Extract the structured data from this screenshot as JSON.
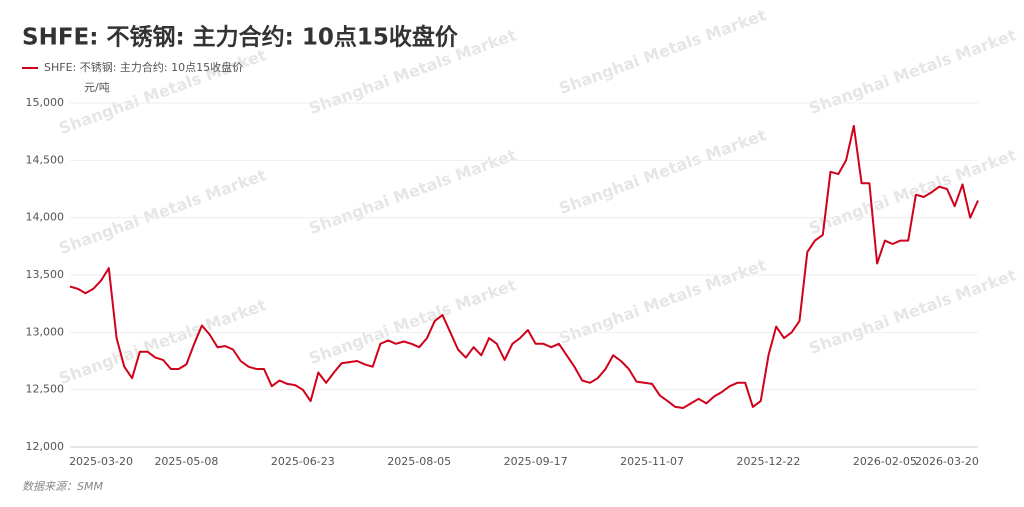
{
  "chart_data": {
    "type": "line",
    "title": "SHFE: 不锈钢: 主力合约: 10点15收盘价",
    "y_axis_label": "元/吨",
    "source": "数据来源：SMM",
    "watermark": "Shanghai Metals Market",
    "categories": [
      null,
      null,
      null,
      null,
      "2025-03-20",
      null,
      null,
      null,
      null,
      null,
      null,
      null,
      null,
      null,
      null,
      "2025-05-08",
      null,
      null,
      null,
      null,
      null,
      null,
      null,
      null,
      null,
      null,
      null,
      null,
      null,
      null,
      "2025-06-23",
      null,
      null,
      null,
      null,
      null,
      null,
      null,
      null,
      null,
      null,
      null,
      null,
      null,
      null,
      "2025-08-05",
      null,
      null,
      null,
      null,
      null,
      null,
      null,
      null,
      null,
      null,
      null,
      null,
      null,
      null,
      "2025-09-17",
      null,
      null,
      null,
      null,
      null,
      null,
      null,
      null,
      null,
      null,
      null,
      null,
      null,
      null,
      "2025-11-07",
      null,
      null,
      null,
      null,
      null,
      null,
      null,
      null,
      null,
      null,
      null,
      null,
      null,
      null,
      "2025-12-22",
      null,
      null,
      null,
      null,
      null,
      null,
      null,
      null,
      null,
      null,
      null,
      null,
      null,
      null,
      "2026-02-05",
      null,
      null,
      null,
      null,
      null,
      null,
      null,
      "2026-03-20",
      null,
      null,
      null,
      null
    ],
    "series": [
      {
        "name": "SHFE: 不锈钢: 主力合约: 10点15收盘价",
        "color": "#d0021b",
        "values": [
          13400,
          13380,
          13340,
          13380,
          13450,
          13560,
          12950,
          12700,
          12600,
          12830,
          12830,
          12780,
          12760,
          12680,
          12680,
          12720,
          12900,
          13060,
          12980,
          12870,
          12880,
          12850,
          12750,
          12700,
          12680,
          12680,
          12530,
          12580,
          12550,
          12540,
          12500,
          12400,
          12650,
          12560,
          12650,
          12730,
          12740,
          12750,
          12720,
          12700,
          12900,
          12930,
          12900,
          12920,
          12900,
          12870,
          12950,
          13100,
          13150,
          13000,
          12850,
          12780,
          12870,
          12800,
          12950,
          12900,
          12760,
          12900,
          12950,
          13020,
          12900,
          12900,
          12870,
          12900,
          12800,
          12700,
          12580,
          12560,
          12600,
          12680,
          12800,
          12750,
          12680,
          12570,
          12560,
          12550,
          12450,
          12400,
          12350,
          12340,
          12380,
          12420,
          12380,
          12440,
          12480,
          12530,
          12560,
          12560,
          12350,
          12400,
          12800,
          13050,
          12950,
          13000,
          13100,
          13700,
          13800,
          13850,
          14400,
          14380,
          14500,
          14800,
          14300,
          14300,
          13600,
          13800,
          13770,
          13800,
          13800,
          14200,
          14180,
          14220,
          14270,
          14250,
          14100,
          14290,
          14000,
          14150
        ]
      }
    ],
    "ylim": [
      12000,
      15000
    ],
    "yticks": [
      {
        "value": 12000,
        "label": "12,000"
      },
      {
        "value": 12500,
        "label": "12,500"
      },
      {
        "value": 13000,
        "label": "13,000"
      },
      {
        "value": 13500,
        "label": "13,500"
      },
      {
        "value": 14000,
        "label": "14,000"
      },
      {
        "value": 14500,
        "label": "14,500"
      },
      {
        "value": 15000,
        "label": "15,000"
      }
    ],
    "grid": true,
    "legend": "top-left"
  }
}
